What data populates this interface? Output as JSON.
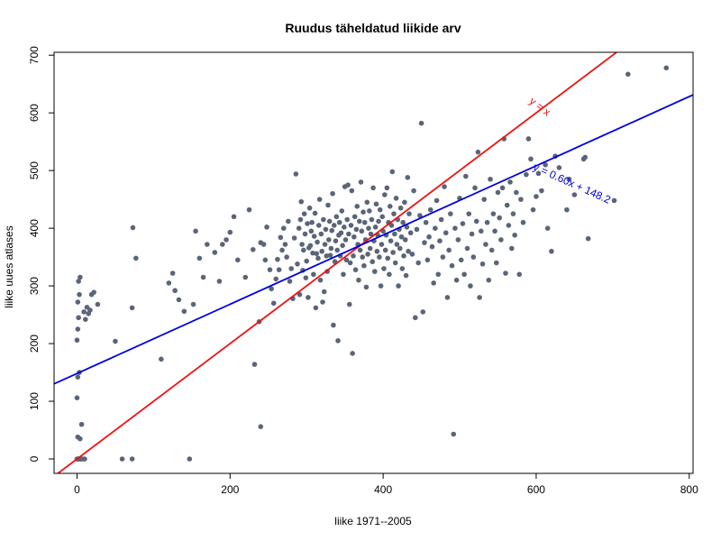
{
  "chart_data": {
    "type": "scatter",
    "title": "Ruudus täheldatud liikide arv",
    "xlabel": "liike 1971--2005",
    "ylabel": "liike uues atlases",
    "xlim": [
      -30,
      805
    ],
    "ylim": [
      -25,
      705
    ],
    "x_ticks": [
      "0",
      "200",
      "400",
      "600",
      "800"
    ],
    "y_ticks": [
      "0",
      "100",
      "200",
      "300",
      "400",
      "500",
      "600",
      "700"
    ],
    "grid": false,
    "point_color": "#5a6578",
    "lines": [
      {
        "label": "y = x",
        "slope": 1.0,
        "intercept": 0,
        "color": "#ee1111",
        "label_at": [
          590,
          618
        ]
      },
      {
        "label": "y = 0.60x + 148.2",
        "slope": 0.6,
        "intercept": 148.2,
        "color": "#0000dd",
        "label_at": [
          595,
          502
        ]
      }
    ],
    "points": [
      [
        0,
        0
      ],
      [
        1,
        0
      ],
      [
        2,
        0
      ],
      [
        4,
        0
      ],
      [
        6,
        0
      ],
      [
        8,
        0
      ],
      [
        10,
        0
      ],
      [
        3,
        0
      ],
      [
        5,
        0
      ],
      [
        1,
        38
      ],
      [
        4,
        35
      ],
      [
        6,
        60
      ],
      [
        0,
        106
      ],
      [
        1,
        142
      ],
      [
        3,
        150
      ],
      [
        0,
        206
      ],
      [
        1,
        225
      ],
      [
        2,
        245
      ],
      [
        1,
        272
      ],
      [
        3,
        285
      ],
      [
        2,
        308
      ],
      [
        4,
        315
      ],
      [
        9,
        255
      ],
      [
        11,
        242
      ],
      [
        13,
        263
      ],
      [
        15,
        252
      ],
      [
        17,
        258
      ],
      [
        19,
        285
      ],
      [
        22,
        289
      ],
      [
        27,
        268
      ],
      [
        50,
        204
      ],
      [
        59,
        0
      ],
      [
        72,
        0
      ],
      [
        72,
        262
      ],
      [
        73,
        401
      ],
      [
        77,
        348
      ],
      [
        110,
        173
      ],
      [
        147,
        0
      ],
      [
        120,
        305
      ],
      [
        125,
        322
      ],
      [
        128,
        292
      ],
      [
        133,
        276
      ],
      [
        140,
        256
      ],
      [
        152,
        268
      ],
      [
        155,
        395
      ],
      [
        160,
        348
      ],
      [
        165,
        315
      ],
      [
        170,
        372
      ],
      [
        180,
        358
      ],
      [
        186,
        308
      ],
      [
        190,
        372
      ],
      [
        195,
        380
      ],
      [
        200,
        393
      ],
      [
        205,
        420
      ],
      [
        210,
        345
      ],
      [
        220,
        315
      ],
      [
        225,
        432
      ],
      [
        230,
        363
      ],
      [
        232,
        164
      ],
      [
        238,
        238
      ],
      [
        240,
        56
      ],
      [
        240,
        375
      ],
      [
        244,
        372
      ],
      [
        246,
        345
      ],
      [
        248,
        402
      ],
      [
        252,
        328
      ],
      [
        254,
        295
      ],
      [
        257,
        270
      ],
      [
        260,
        312
      ],
      [
        262,
        346
      ],
      [
        264,
        328
      ],
      [
        266,
        384
      ],
      [
        268,
        362
      ],
      [
        270,
        400
      ],
      [
        272,
        372
      ],
      [
        274,
        350
      ],
      [
        276,
        412
      ],
      [
        278,
        308
      ],
      [
        280,
        330
      ],
      [
        282,
        278
      ],
      [
        284,
        383
      ],
      [
        286,
        494
      ],
      [
        288,
        338
      ],
      [
        290,
        400
      ],
      [
        291,
        285
      ],
      [
        292,
        415
      ],
      [
        293,
        446
      ],
      [
        294,
        372
      ],
      [
        295,
        327
      ],
      [
        296,
        362
      ],
      [
        297,
        425
      ],
      [
        298,
        390
      ],
      [
        299,
        314
      ],
      [
        300,
        343
      ],
      [
        301,
        408
      ],
      [
        302,
        280
      ],
      [
        303,
        366
      ],
      [
        304,
        435
      ],
      [
        305,
        370
      ],
      [
        306,
        395
      ],
      [
        307,
        410
      ],
      [
        308,
        357
      ],
      [
        309,
        320
      ],
      [
        310,
        386
      ],
      [
        311,
        426
      ],
      [
        312,
        262
      ],
      [
        313,
        356
      ],
      [
        314,
        376
      ],
      [
        315,
        348
      ],
      [
        316,
        405
      ],
      [
        317,
        450
      ],
      [
        318,
        310
      ],
      [
        319,
        390
      ],
      [
        320,
        360
      ],
      [
        321,
        272
      ],
      [
        322,
        415
      ],
      [
        323,
        290
      ],
      [
        324,
        372
      ],
      [
        325,
        398
      ],
      [
        326,
        352
      ],
      [
        327,
        325
      ],
      [
        328,
        440
      ],
      [
        329,
        380
      ],
      [
        330,
        412
      ],
      [
        331,
        353
      ],
      [
        332,
        365
      ],
      [
        333,
        396
      ],
      [
        334,
        460
      ],
      [
        335,
        232
      ],
      [
        336,
        405
      ],
      [
        337,
        342
      ],
      [
        338,
        378
      ],
      [
        339,
        420
      ],
      [
        340,
        362
      ],
      [
        341,
        205
      ],
      [
        342,
        388
      ],
      [
        343,
        410
      ],
      [
        344,
        352
      ],
      [
        345,
        392
      ],
      [
        346,
        430
      ],
      [
        347,
        370
      ],
      [
        348,
        320
      ],
      [
        349,
        402
      ],
      [
        350,
        472
      ],
      [
        351,
        380
      ],
      [
        352,
        345
      ],
      [
        353,
        415
      ],
      [
        354,
        475
      ],
      [
        355,
        390
      ],
      [
        356,
        268
      ],
      [
        357,
        340
      ],
      [
        358,
        405
      ],
      [
        359,
        465
      ],
      [
        360,
        183
      ],
      [
        361,
        352
      ],
      [
        362,
        385
      ],
      [
        363,
        420
      ],
      [
        364,
        328
      ],
      [
        365,
        398
      ],
      [
        366,
        438
      ],
      [
        367,
        372
      ],
      [
        368,
        310
      ],
      [
        369,
        412
      ],
      [
        370,
        362
      ],
      [
        371,
        480
      ],
      [
        372,
        395
      ],
      [
        373,
        350
      ],
      [
        374,
        428
      ],
      [
        375,
        335
      ],
      [
        376,
        410
      ],
      [
        377,
        380
      ],
      [
        378,
        298
      ],
      [
        379,
        445
      ],
      [
        380,
        355
      ],
      [
        381,
        400
      ],
      [
        382,
        430
      ],
      [
        383,
        365
      ],
      [
        384,
        390
      ],
      [
        385,
        415
      ],
      [
        386,
        342
      ],
      [
        387,
        470
      ],
      [
        388,
        378
      ],
      [
        389,
        325
      ],
      [
        390,
        402
      ],
      [
        391,
        442
      ],
      [
        392,
        360
      ],
      [
        393,
        388
      ],
      [
        394,
        412
      ],
      [
        395,
        350
      ],
      [
        396,
        432
      ],
      [
        397,
        300
      ],
      [
        398,
        372
      ],
      [
        399,
        420
      ],
      [
        400,
        395
      ],
      [
        401,
        330
      ],
      [
        402,
        458
      ],
      [
        403,
        362
      ],
      [
        404,
        388
      ],
      [
        405,
        470
      ],
      [
        406,
        348
      ],
      [
        407,
        410
      ],
      [
        408,
        320
      ],
      [
        409,
        438
      ],
      [
        410,
        378
      ],
      [
        411,
        405
      ],
      [
        412,
        498
      ],
      [
        413,
        358
      ],
      [
        414,
        425
      ],
      [
        415,
        390
      ],
      [
        416,
        340
      ],
      [
        417,
        452
      ],
      [
        418,
        372
      ],
      [
        419,
        415
      ],
      [
        420,
        300
      ],
      [
        421,
        398
      ],
      [
        422,
        365
      ],
      [
        423,
        435
      ],
      [
        424,
        385
      ],
      [
        425,
        330
      ],
      [
        426,
        410
      ],
      [
        427,
        352
      ],
      [
        428,
        445
      ],
      [
        429,
        380
      ],
      [
        430,
        318
      ],
      [
        431,
        402
      ],
      [
        432,
        488
      ],
      [
        433,
        360
      ],
      [
        434,
        425
      ],
      [
        436,
        392
      ],
      [
        438,
        355
      ],
      [
        440,
        465
      ],
      [
        442,
        245
      ],
      [
        444,
        398
      ],
      [
        446,
        340
      ],
      [
        448,
        422
      ],
      [
        450,
        582
      ],
      [
        452,
        255
      ],
      [
        454,
        375
      ],
      [
        456,
        410
      ],
      [
        458,
        345
      ],
      [
        460,
        385
      ],
      [
        462,
        432
      ],
      [
        464,
        368
      ],
      [
        466,
        305
      ],
      [
        468,
        400
      ],
      [
        470,
        448
      ],
      [
        472,
        320
      ],
      [
        474,
        378
      ],
      [
        476,
        415
      ],
      [
        478,
        350
      ],
      [
        480,
        472
      ],
      [
        482,
        392
      ],
      [
        484,
        280
      ],
      [
        486,
        362
      ],
      [
        488,
        425
      ],
      [
        490,
        335
      ],
      [
        492,
        43
      ],
      [
        494,
        400
      ],
      [
        496,
        310
      ],
      [
        498,
        380
      ],
      [
        500,
        452
      ],
      [
        502,
        345
      ],
      [
        504,
        408
      ],
      [
        506,
        320
      ],
      [
        508,
        490
      ],
      [
        510,
        365
      ],
      [
        512,
        425
      ],
      [
        514,
        300
      ],
      [
        516,
        390
      ],
      [
        518,
        350
      ],
      [
        520,
        470
      ],
      [
        522,
        412
      ],
      [
        524,
        532
      ],
      [
        526,
        280
      ],
      [
        528,
        395
      ],
      [
        530,
        338
      ],
      [
        532,
        450
      ],
      [
        534,
        372
      ],
      [
        536,
        410
      ],
      [
        538,
        310
      ],
      [
        540,
        485
      ],
      [
        542,
        362
      ],
      [
        544,
        425
      ],
      [
        546,
        395
      ],
      [
        548,
        340
      ],
      [
        550,
        462
      ],
      [
        552,
        418
      ],
      [
        554,
        380
      ],
      [
        556,
        470
      ],
      [
        558,
        555
      ],
      [
        560,
        322
      ],
      [
        562,
        440
      ],
      [
        564,
        405
      ],
      [
        566,
        480
      ],
      [
        568,
        365
      ],
      [
        570,
        425
      ],
      [
        572,
        388
      ],
      [
        574,
        462
      ],
      [
        578,
        320
      ],
      [
        580,
        450
      ],
      [
        583,
        410
      ],
      [
        587,
        493
      ],
      [
        590,
        555
      ],
      [
        593,
        520
      ],
      [
        596,
        432
      ],
      [
        600,
        455
      ],
      [
        603,
        495
      ],
      [
        607,
        465
      ],
      [
        612,
        510
      ],
      [
        615,
        400
      ],
      [
        620,
        360
      ],
      [
        625,
        525
      ],
      [
        630,
        505
      ],
      [
        640,
        432
      ],
      [
        643,
        485
      ],
      [
        650,
        458
      ],
      [
        662,
        520
      ],
      [
        664,
        523
      ],
      [
        668,
        382
      ],
      [
        702,
        448
      ],
      [
        720,
        667
      ],
      [
        770,
        678
      ]
    ]
  }
}
